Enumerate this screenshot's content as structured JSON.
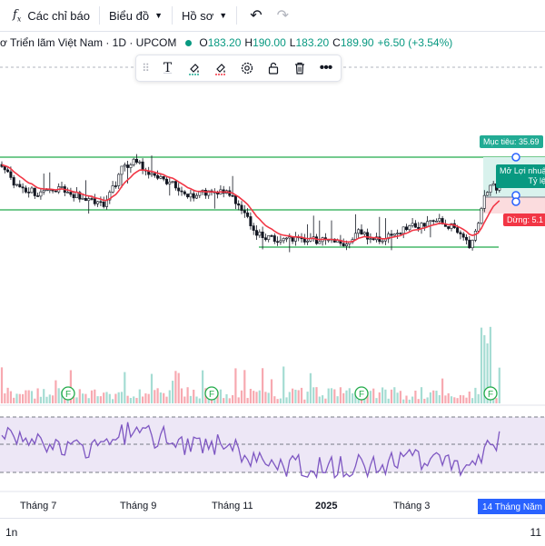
{
  "toolbar": {
    "indicators_label": "Các chỉ báo",
    "chart_type_label": "Biểu đồ",
    "profile_label": "Hồ sơ"
  },
  "legend": {
    "symbol_text": "ơ Triển lãm Việt Nam · 1D · UPCOM",
    "open_key": "O",
    "open_val": "183.20",
    "high_key": "H",
    "high_val": "190.00",
    "low_key": "L",
    "low_val": "183.20",
    "close_key": "C",
    "close_val": "189.90",
    "change": "+6.50 (+3.54%)"
  },
  "position_tool": {
    "target_label": "Mục tiêu: 35.69",
    "open_label_line1": "Mở Lợi nhuậ",
    "open_label_line2": "Tỷ lệ R",
    "stop_label": "Dừng: 5.1"
  },
  "time_axis": {
    "labels": [
      "Tháng 7",
      "Tháng 9",
      "Tháng 11",
      "2025",
      "Tháng 3"
    ],
    "cursor_label": "14 Tháng Năm '2"
  },
  "events": [
    "F",
    "F",
    "F",
    "F"
  ],
  "bottom_bar": {
    "range_label": "1n",
    "right_label": "11"
  },
  "colors": {
    "up": "#089981",
    "down": "#f23645",
    "ma": "#f23645",
    "channel": "#22ab4a",
    "rsi": "#7e57c2",
    "rsi_band": "#ede7f6",
    "target": "#22ab94",
    "stop": "#f23645"
  },
  "icons": [
    "fx-icon",
    "chevron-down-icon",
    "undo-icon",
    "redo-icon",
    "text-icon",
    "fill-color-icon",
    "line-color-icon",
    "settings-icon",
    "lock-icon",
    "trash-icon",
    "more-icon",
    "earnings-event-icon"
  ]
}
